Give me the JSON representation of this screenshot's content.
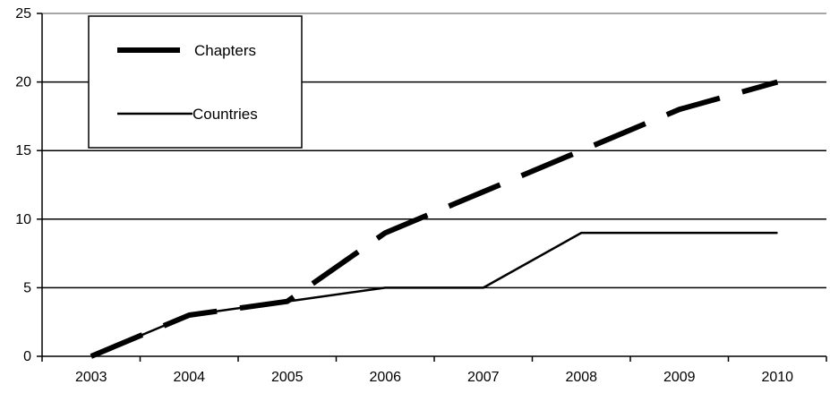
{
  "chart_data": {
    "type": "line",
    "title": "",
    "xlabel": "",
    "ylabel": "",
    "categories": [
      "2003",
      "2004",
      "2005",
      "2006",
      "2007",
      "2008",
      "2009",
      "2010"
    ],
    "ylim": [
      0,
      25
    ],
    "yticks": [
      "0",
      "5",
      "10",
      "15",
      "20",
      "25"
    ],
    "grid": "horizontal",
    "legend_position": "top-left",
    "series": [
      {
        "name": "Chapters",
        "style": "dashed",
        "color": "#000000",
        "points": [
          [
            2003,
            0
          ],
          [
            2004,
            3
          ],
          [
            2005,
            4
          ],
          [
            2006,
            9
          ],
          [
            2007,
            12
          ],
          [
            2008,
            15
          ],
          [
            2009,
            18
          ],
          [
            2010,
            20
          ]
        ]
      },
      {
        "name": "Countries",
        "style": "solid",
        "color": "#000000",
        "points": [
          [
            2003,
            0
          ],
          [
            2004,
            3
          ],
          [
            2005,
            4
          ],
          [
            2006,
            5
          ],
          [
            2007,
            5
          ],
          [
            2008,
            9
          ],
          [
            2009,
            9
          ],
          [
            2010,
            9
          ]
        ]
      }
    ]
  }
}
